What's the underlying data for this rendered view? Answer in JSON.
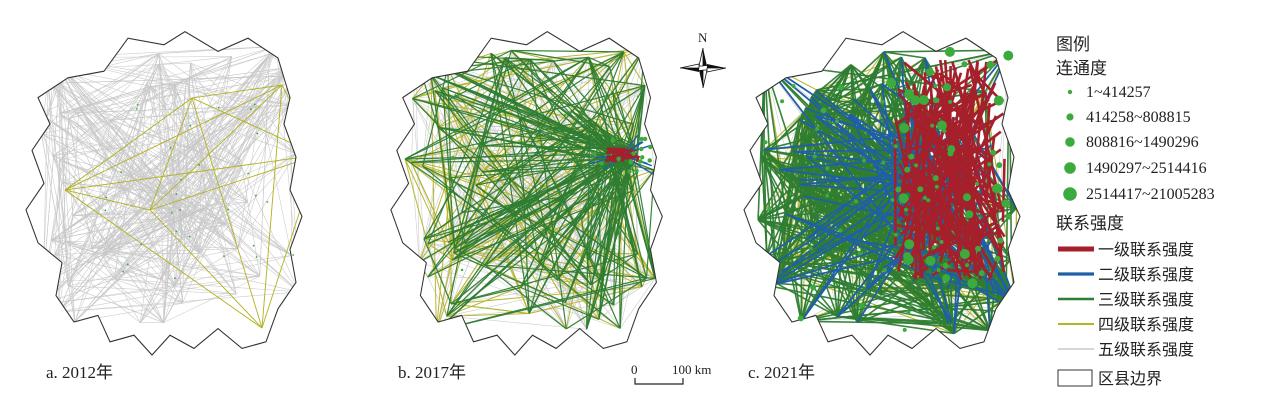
{
  "panels": [
    {
      "label": "a. 2012年"
    },
    {
      "label": "b. 2017年"
    },
    {
      "label": "c. 2021年"
    }
  ],
  "north_arrow": {
    "label": "N"
  },
  "scale_bar": {
    "zero": "0",
    "distance": "100 km"
  },
  "legend": {
    "title": "图例",
    "connectivity": {
      "heading": "连通度",
      "classes": [
        {
          "label": "1~414257"
        },
        {
          "label": "414258~808815"
        },
        {
          "label": "808816~1490296"
        },
        {
          "label": "1490297~2514416"
        },
        {
          "label": "2514417~21005283"
        }
      ]
    },
    "strength": {
      "heading": "联系强度",
      "classes": [
        {
          "label": "一级联系强度",
          "color": "#a5202a"
        },
        {
          "label": "二级联系强度",
          "color": "#1f5fa8"
        },
        {
          "label": "三级联系强度",
          "color": "#2e7d32"
        },
        {
          "label": "四级联系强度",
          "color": "#b5b326"
        },
        {
          "label": "五级联系强度",
          "color": "#c8c8c8"
        }
      ]
    },
    "boundary": {
      "label": "区县边界"
    }
  },
  "colors": {
    "node": "#3daa3d",
    "boundary": "#333333",
    "level1": "#a5202a",
    "level2": "#1f5fa8",
    "level3": "#2e7d32",
    "level4": "#b5b326",
    "level5": "#c8c8c8"
  }
}
